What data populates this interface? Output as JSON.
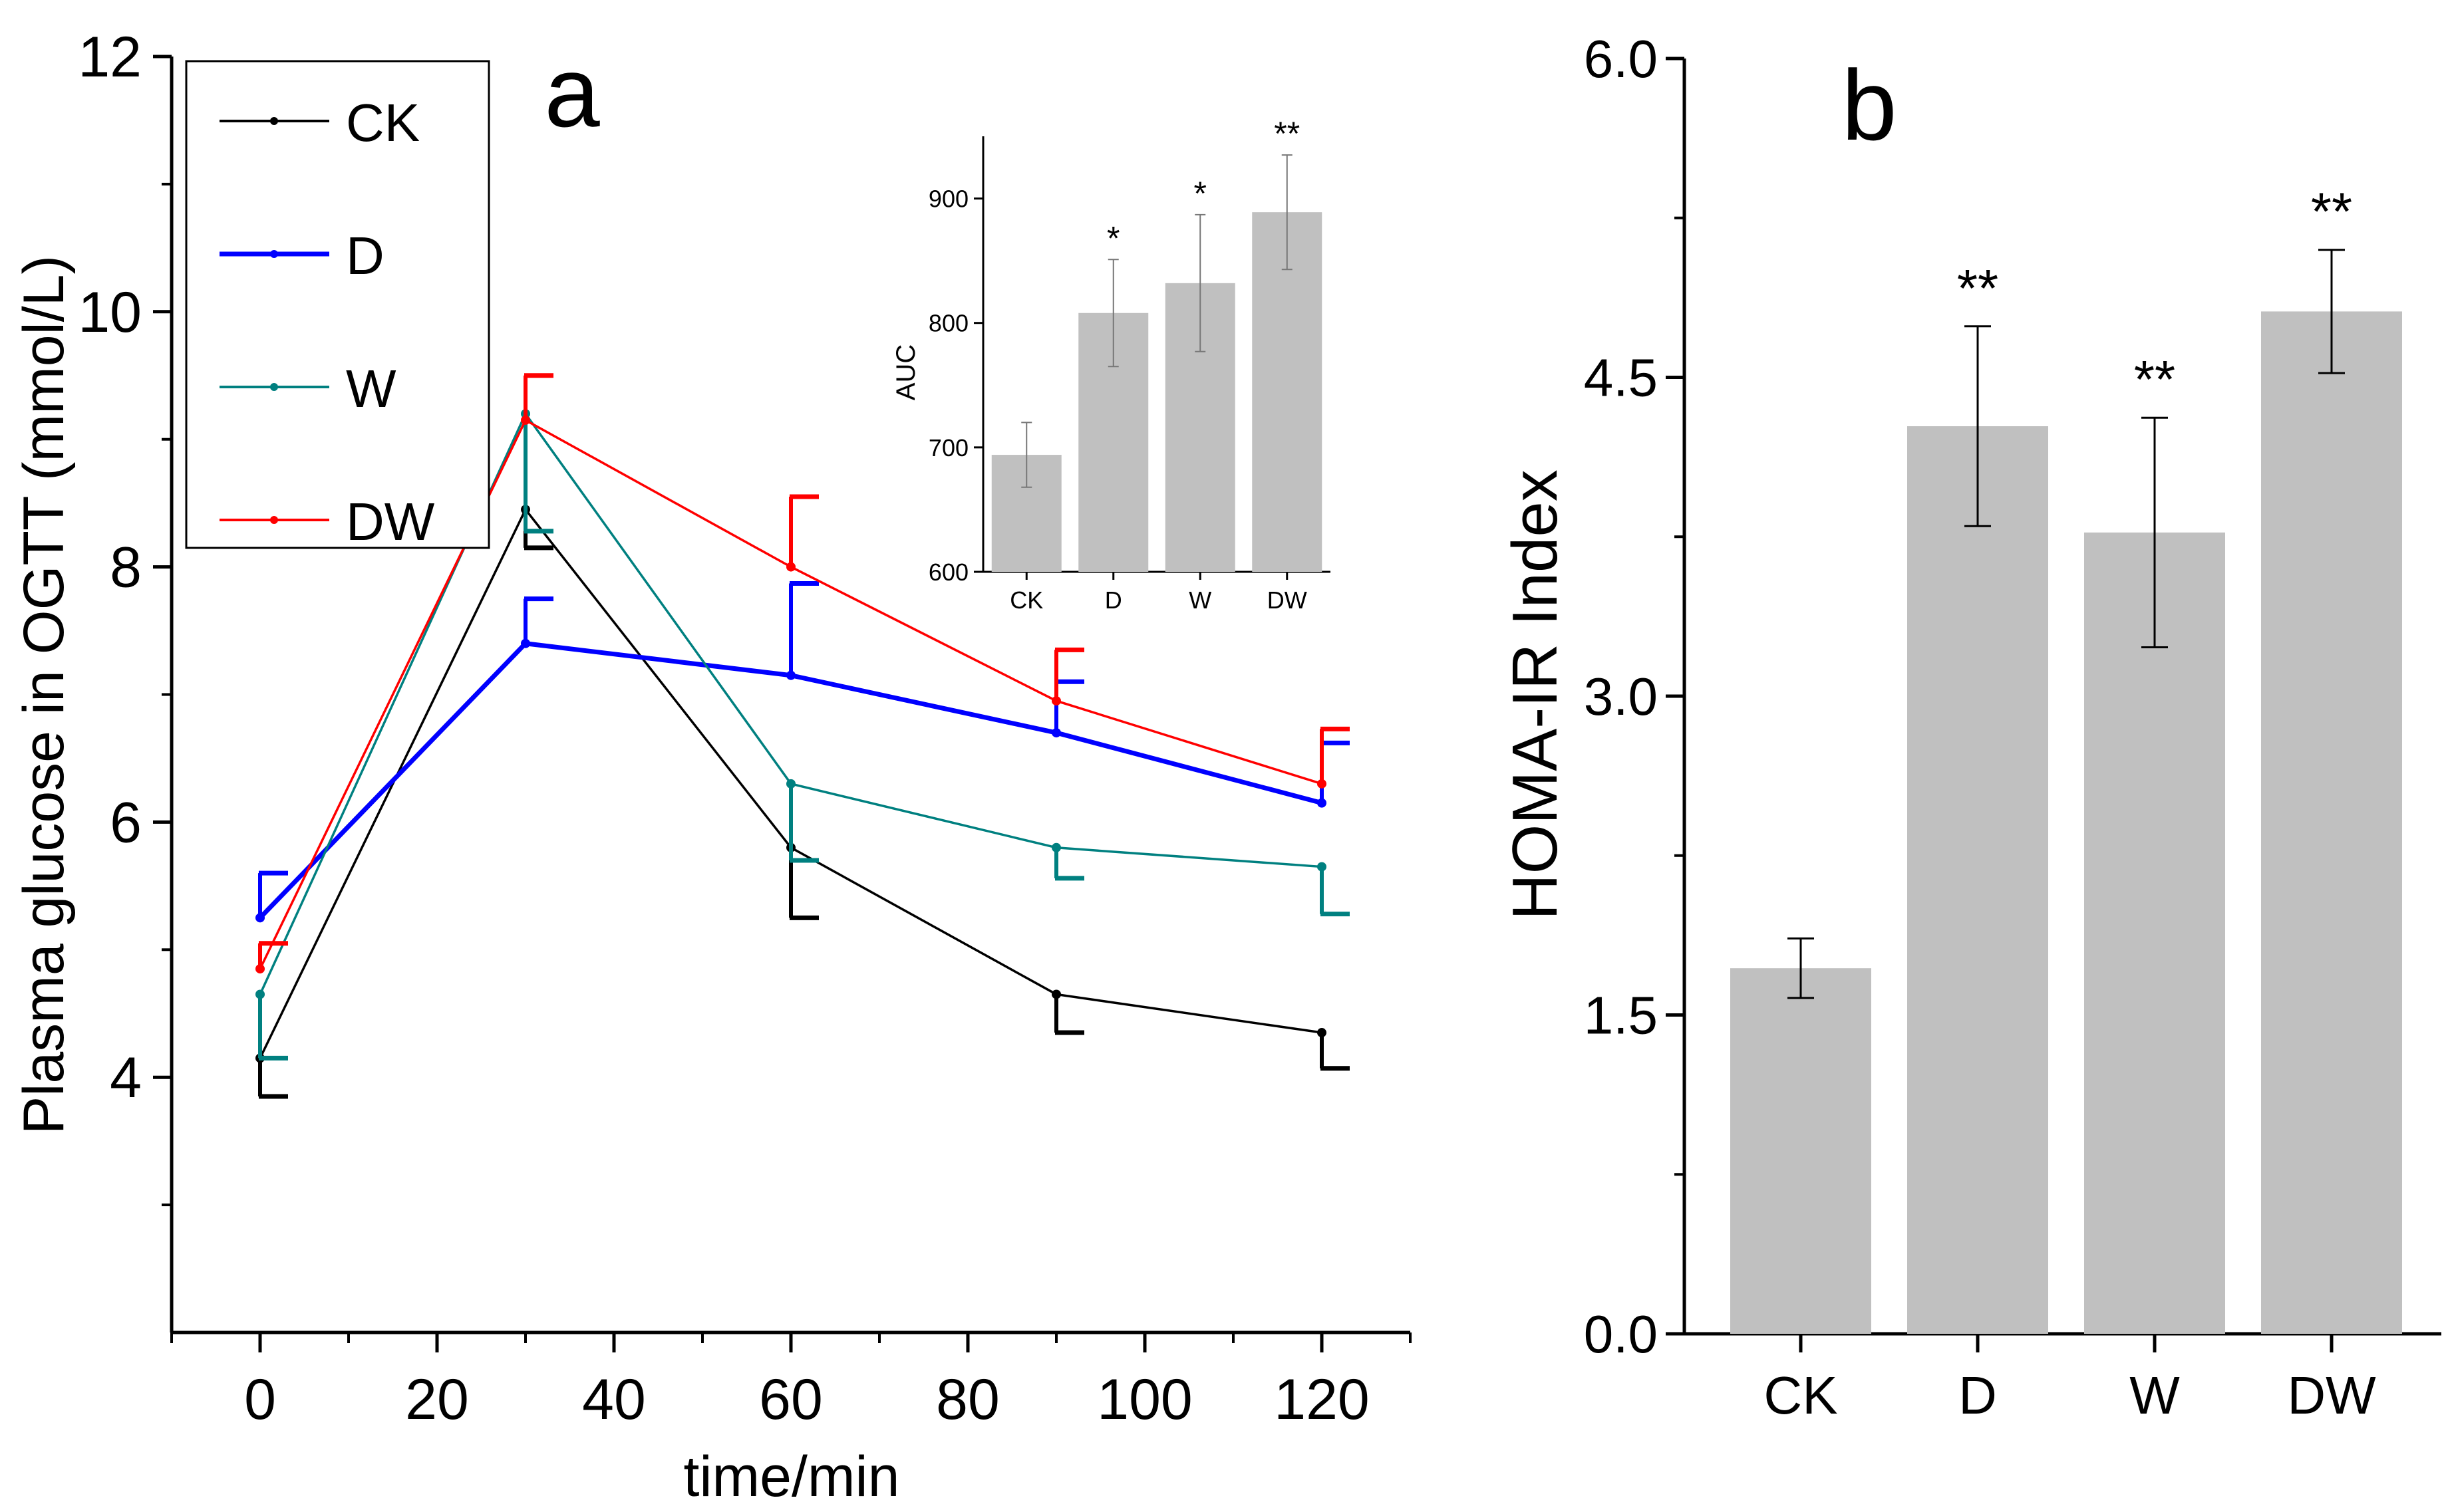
{
  "chart_data": [
    {
      "type": "line",
      "panel_label": "a",
      "xlabel": "time/min",
      "ylabel": "Plasma glucose in OGTT (mmol/L)",
      "xlim": [
        -10,
        130
      ],
      "ylim": [
        2,
        12
      ],
      "xticks": [
        0,
        20,
        40,
        60,
        80,
        100,
        120
      ],
      "yticks": [
        4,
        6,
        8,
        10,
        12
      ],
      "x": [
        0,
        30,
        60,
        90,
        120
      ],
      "legend_position": "top-left",
      "series": [
        {
          "name": "CK",
          "color": "#000000",
          "values": [
            4.15,
            8.45,
            5.8,
            4.65,
            4.35
          ],
          "errors": [
            0.3,
            0.3,
            0.55,
            0.3,
            0.28
          ],
          "err_dir": "down"
        },
        {
          "name": "D",
          "color": "#0000ff",
          "values": [
            5.25,
            7.4,
            7.15,
            6.7,
            6.15
          ],
          "errors": [
            0.35,
            0.35,
            0.72,
            0.4,
            0.47
          ],
          "err_dir": "up"
        },
        {
          "name": "W",
          "color": "#008080",
          "values": [
            4.65,
            9.2,
            6.3,
            5.8,
            5.65
          ],
          "errors": [
            0.5,
            0.92,
            0.6,
            0.24,
            0.37
          ],
          "err_dir": "down"
        },
        {
          "name": "DW",
          "color": "#ff0000",
          "values": [
            4.85,
            9.15,
            8.0,
            6.95,
            6.3
          ],
          "errors": [
            0.2,
            0.35,
            0.55,
            0.4,
            0.43
          ],
          "err_dir": "up"
        }
      ],
      "inset": {
        "type": "bar",
        "ylabel": "AUC",
        "categories": [
          "CK",
          "D",
          "W",
          "DW"
        ],
        "values": [
          694,
          808,
          832,
          889
        ],
        "errors": [
          26,
          43,
          55,
          46
        ],
        "annotations": [
          "",
          "*",
          "*",
          "**"
        ],
        "ylim": [
          600,
          950
        ],
        "yticks": [
          600,
          700,
          800,
          900
        ]
      }
    },
    {
      "type": "bar",
      "panel_label": "b",
      "ylabel": "HOMA-IR Index",
      "categories": [
        "CK",
        "D",
        "W",
        "DW"
      ],
      "values": [
        1.72,
        4.27,
        3.77,
        4.81
      ],
      "errors": [
        0.14,
        0.47,
        0.54,
        0.29
      ],
      "annotations": [
        "",
        "**",
        "**",
        "**"
      ],
      "ylim": [
        0,
        6
      ],
      "yticks": [
        "0.0",
        "1.5",
        "3.0",
        "4.5",
        "6.0"
      ],
      "bar_color": "#c0c0c0"
    }
  ]
}
